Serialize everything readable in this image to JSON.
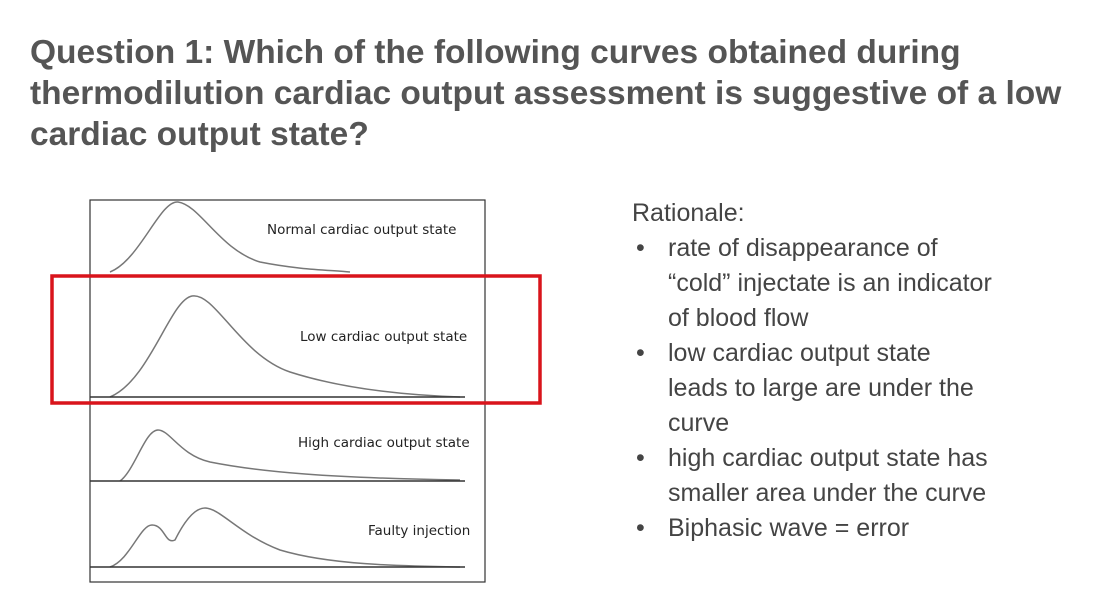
{
  "title": "Question 1: Which of the following curves obtained during thermodilution cardiac output assessment is suggestive of a low cardiac output state?",
  "figure": {
    "labels": [
      "Normal cardiac output state",
      "Low cardiac output state",
      "High cardiac output state",
      "Faulty injection"
    ]
  },
  "rationale": {
    "heading": "Rationale:",
    "bullets": [
      "rate of disappearance of “cold” injectate is an indicator of blood flow",
      "low cardiac output state leads to large are under the curve",
      "high cardiac output state has smaller area under the curve",
      "Biphasic wave = error"
    ]
  }
}
